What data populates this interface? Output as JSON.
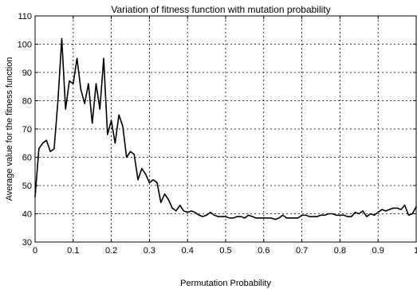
{
  "chart_data": {
    "type": "line",
    "title": "Variation of fitness function with mutation probability",
    "xlabel": "Permutation Probability",
    "ylabel": "Average value for the fitness function",
    "xlim": [
      0,
      1
    ],
    "ylim": [
      30,
      110
    ],
    "xticks": [
      0,
      0.1,
      0.2,
      0.3,
      0.4,
      0.5,
      0.6,
      0.7,
      0.8,
      0.9,
      1
    ],
    "xtick_labels": [
      "0",
      "0.1",
      "0.2",
      "0.3",
      "0.4",
      "0.5",
      "0.6",
      "0.7",
      "0.8",
      "0.9",
      "1"
    ],
    "yticks": [
      30,
      40,
      50,
      60,
      70,
      80,
      90,
      100,
      110
    ],
    "ytick_labels": [
      "30",
      "40",
      "50",
      "60",
      "70",
      "80",
      "90",
      "100",
      "110"
    ],
    "grid": true,
    "line_color": "#000000",
    "series": [
      {
        "x": [
          0,
          0.01,
          0.02,
          0.03,
          0.04,
          0.05,
          0.06,
          0.07,
          0.08,
          0.09,
          0.1,
          0.11,
          0.12,
          0.13,
          0.14,
          0.15,
          0.16,
          0.17,
          0.18,
          0.19,
          0.2,
          0.21,
          0.22,
          0.23,
          0.24,
          0.25,
          0.26,
          0.27,
          0.28,
          0.29,
          0.3,
          0.31,
          0.32,
          0.33,
          0.34,
          0.35,
          0.36,
          0.37,
          0.38,
          0.39,
          0.4,
          0.41,
          0.42,
          0.43,
          0.44,
          0.45,
          0.46,
          0.47,
          0.48,
          0.49,
          0.5,
          0.51,
          0.52,
          0.53,
          0.54,
          0.55,
          0.56,
          0.57,
          0.58,
          0.59,
          0.6,
          0.61,
          0.62,
          0.63,
          0.64,
          0.65,
          0.66,
          0.67,
          0.68,
          0.69,
          0.7,
          0.71,
          0.72,
          0.73,
          0.74,
          0.75,
          0.76,
          0.77,
          0.78,
          0.79,
          0.8,
          0.81,
          0.82,
          0.83,
          0.84,
          0.85,
          0.86,
          0.87,
          0.88,
          0.89,
          0.9,
          0.91,
          0.92,
          0.93,
          0.94,
          0.95,
          0.96,
          0.97,
          0.98,
          0.99,
          1
        ],
        "y": [
          46,
          63,
          65,
          66,
          62,
          63,
          80,
          102,
          77,
          87,
          86,
          95,
          84,
          79,
          86,
          72,
          86,
          77,
          95,
          68,
          73,
          65,
          75,
          71,
          60,
          62,
          61,
          52,
          56,
          54,
          51,
          52,
          51,
          44,
          47,
          45,
          42,
          41,
          43,
          41,
          40.5,
          41,
          40.5,
          39.5,
          39,
          39.5,
          40.5,
          39.5,
          39,
          39,
          39,
          38.5,
          38.5,
          39,
          39,
          38.5,
          39.5,
          39,
          38.5,
          38.5,
          38.5,
          38.5,
          38.5,
          38,
          38.5,
          39.5,
          38.5,
          38.5,
          38.5,
          38.5,
          39.5,
          39.5,
          39,
          39,
          39,
          39.5,
          39.5,
          40,
          40,
          39.5,
          39.5,
          39.5,
          39,
          39,
          40.5,
          40,
          41,
          39,
          40,
          39.5,
          40.5,
          41.5,
          41,
          41.5,
          42,
          42,
          41.5,
          43,
          39.5,
          40,
          42.5
        ]
      }
    ]
  }
}
